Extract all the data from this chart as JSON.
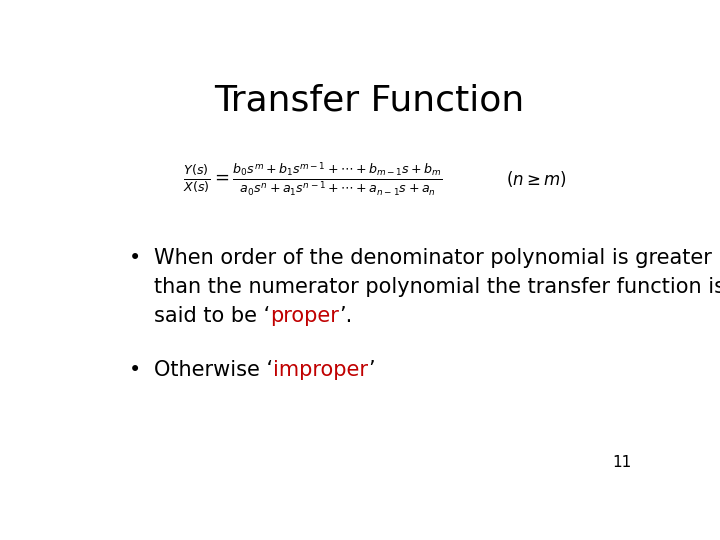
{
  "title": "Transfer Function",
  "title_fontsize": 26,
  "title_color": "#000000",
  "background_color": "#ffffff",
  "bullet1_line1": "When order of the denominator polynomial is greater",
  "bullet1_line2": "than the numerator polynomial the transfer function is",
  "bullet1_line3_before": "said to be ‘",
  "bullet1_line3_proper": "proper",
  "bullet1_line3_after": "’.",
  "bullet2_before": "Otherwise ‘",
  "bullet2_improper": "improper",
  "bullet2_after": "’",
  "red_color": "#c00000",
  "black_color": "#000000",
  "slide_number": "11",
  "text_fontsize": 15,
  "formula_fontsize": 13
}
